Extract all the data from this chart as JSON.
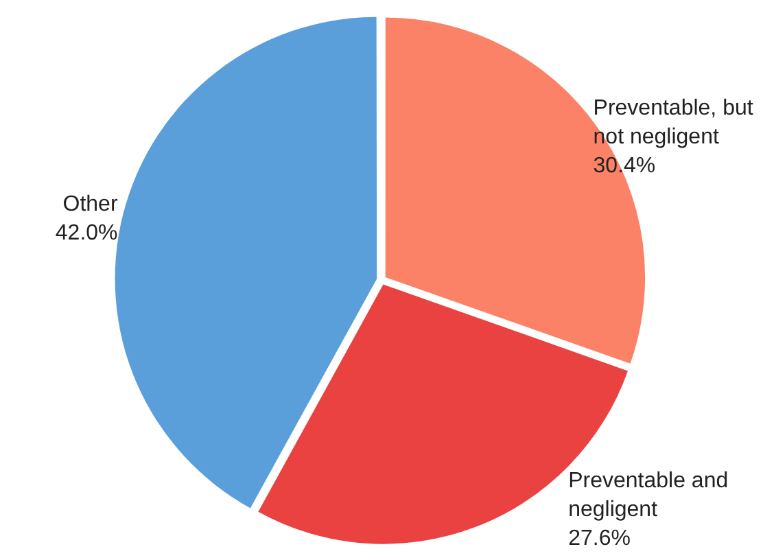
{
  "chart_data": {
    "type": "pie",
    "categories": [
      "Preventable, but not negligent",
      "Preventable and negligent",
      "Other"
    ],
    "values": [
      30.4,
      27.6,
      42.0
    ],
    "value_labels": [
      "30.4%",
      "27.6%",
      "42.0%"
    ],
    "colors": [
      "#fb8266",
      "#ea4141",
      "#5a9fd9"
    ],
    "legend": false
  }
}
